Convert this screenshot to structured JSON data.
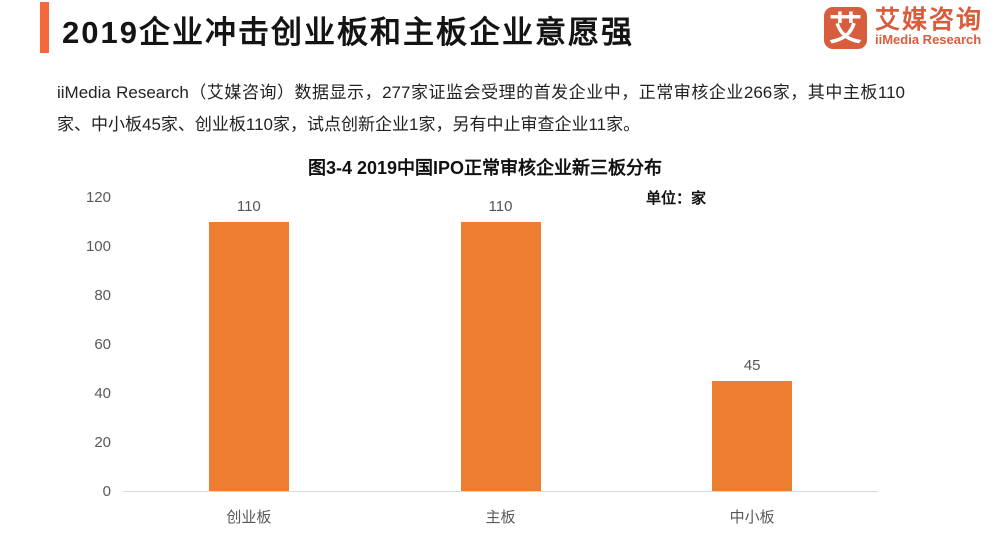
{
  "header": {
    "title": "2019企业冲击创业板和主板企业意愿强",
    "accent_color": "#f4683c"
  },
  "logo": {
    "symbol": "艾",
    "name_cn": "艾媒咨询",
    "name_en": "iiMedia Research",
    "color": "#d85d3c"
  },
  "intro": {
    "text": "iiMedia Research（艾媒咨询）数据显示，277家证监会受理的首发企业中，正常审核企业266家，其中主板110家、中小板45家、创业板110家，试点创新企业1家，另有中止审查企业11家。"
  },
  "chart_data": {
    "type": "bar",
    "title": "图3-4 2019中国IPO正常审核企业新三板分布",
    "unit_label": "单位：家",
    "categories": [
      "创业板",
      "主板",
      "中小板"
    ],
    "values": [
      110,
      110,
      45
    ],
    "xlabel": "",
    "ylabel": "",
    "ylim": [
      0,
      120
    ],
    "yticks": [
      0,
      20,
      40,
      60,
      80,
      100,
      120
    ],
    "bar_color": "#ed7d31",
    "axis_line_color": "#d9d9d9",
    "grid": false,
    "legend_position": "none"
  }
}
